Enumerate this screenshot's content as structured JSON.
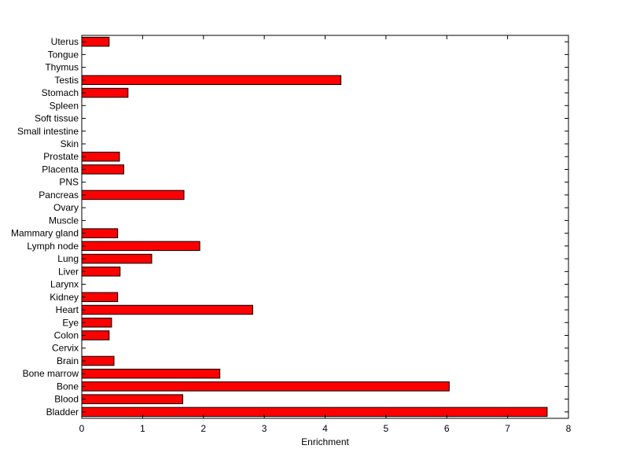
{
  "chart_data": {
    "type": "bar",
    "orientation": "horizontal",
    "title": "",
    "xlabel": "Enrichment",
    "ylabel": "",
    "xlim": [
      0,
      8
    ],
    "xticks": [
      0,
      1,
      2,
      3,
      4,
      5,
      6,
      7,
      8
    ],
    "grid": false,
    "legend": "none",
    "bar_color": "#ff0000",
    "bar_edge_color": "#000000",
    "categories": [
      "Bladder",
      "Blood",
      "Bone",
      "Bone marrow",
      "Brain",
      "Cervix",
      "Colon",
      "Eye",
      "Heart",
      "Kidney",
      "Larynx",
      "Liver",
      "Lung",
      "Lymph node",
      "Mammary gland",
      "Muscle",
      "Ovary",
      "Pancreas",
      "PNS",
      "Placenta",
      "Prostate",
      "Skin",
      "Small intestine",
      "Soft tissue",
      "Spleen",
      "Stomach",
      "Testis",
      "Thymus",
      "Tongue",
      "Uterus"
    ],
    "values": [
      7.65,
      1.66,
      6.04,
      2.27,
      0.53,
      0,
      0.45,
      0.49,
      2.81,
      0.59,
      0,
      0.63,
      1.15,
      1.94,
      0.59,
      0,
      0,
      1.68,
      0,
      0.69,
      0.62,
      0,
      0,
      0,
      0,
      0.76,
      4.26,
      0,
      0,
      0.45
    ]
  }
}
